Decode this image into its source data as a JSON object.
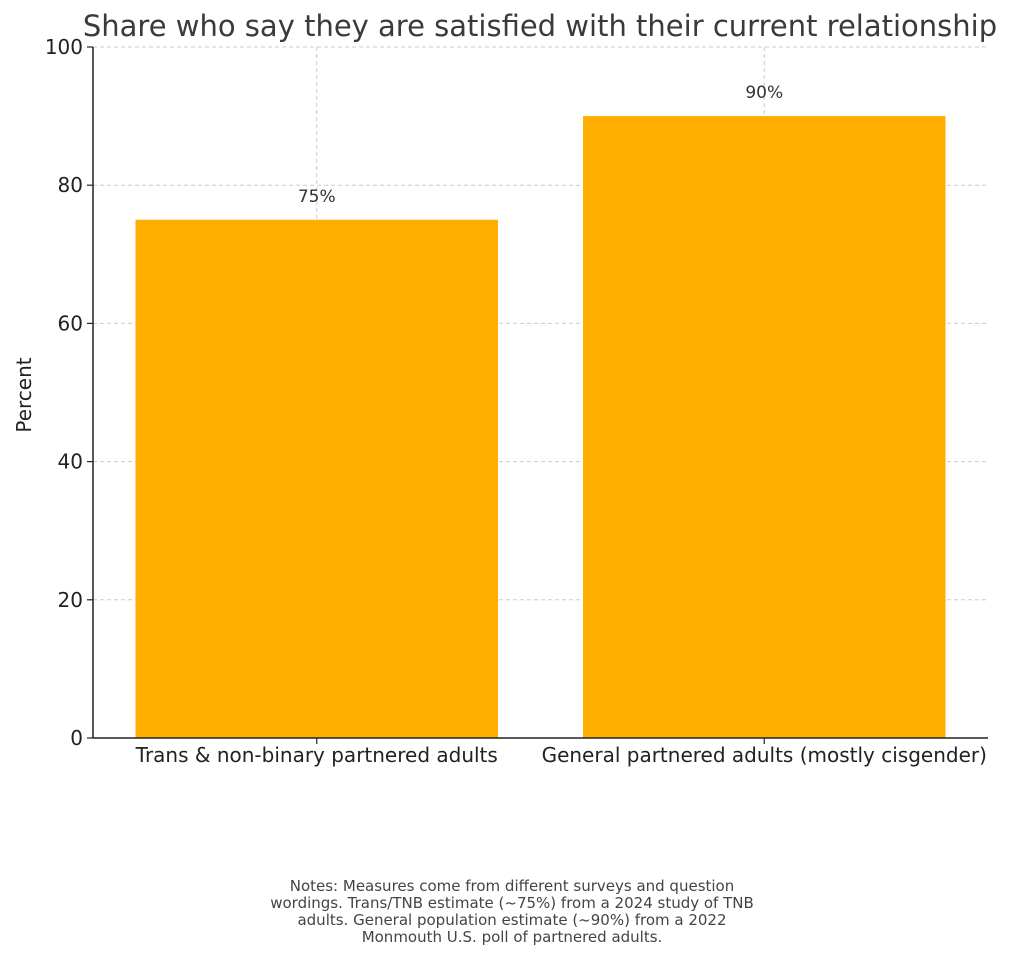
{
  "chart_data": {
    "type": "bar",
    "title": "Share who say they are satisfied with their current relationship",
    "xlabel": "",
    "ylabel": "Percent",
    "categories": [
      "Trans & non-binary partnered adults",
      "General partnered adults (mostly cisgender)"
    ],
    "values": [
      75,
      90
    ],
    "data_labels": [
      "75%",
      "90%"
    ],
    "ylim": [
      0,
      100
    ],
    "yticks": [
      0,
      20,
      40,
      60,
      80,
      100
    ],
    "grid": true,
    "bar_color": "#FFAE00",
    "notes": [
      "Notes: Measures come from different surveys and question",
      "wordings. Trans/TNB estimate (~75%) from a 2024 study of TNB",
      "adults. General population estimate (~90%) from a 2022",
      "Monmouth U.S. poll of partnered adults."
    ]
  }
}
